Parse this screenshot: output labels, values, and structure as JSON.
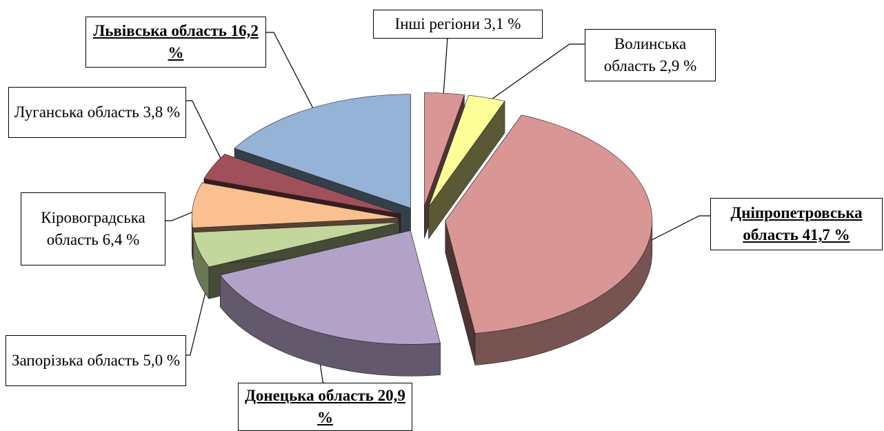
{
  "chart_data": {
    "type": "pie",
    "categories": [
      "Інші регіони",
      "Волинська область",
      "Дніпропетровська область",
      "Донецька область",
      "Запорізька область",
      "Кіровоградська область",
      "Луганська область",
      "Львівська область"
    ],
    "values": [
      3.1,
      2.9,
      41.7,
      20.9,
      5.0,
      6.4,
      3.8,
      16.2
    ],
    "value_labels": [
      "3,1 %",
      "2,9 %",
      "41,7 %",
      "20,9 %",
      "5,0 %",
      "6,4 %",
      "3,8 %",
      "16,2 %"
    ],
    "colors": [
      "#d99694",
      "#ffff99",
      "#d99694",
      "#b3a2c7",
      "#c3d69b",
      "#fac090",
      "#a0505a",
      "#95b3d7"
    ]
  }
}
